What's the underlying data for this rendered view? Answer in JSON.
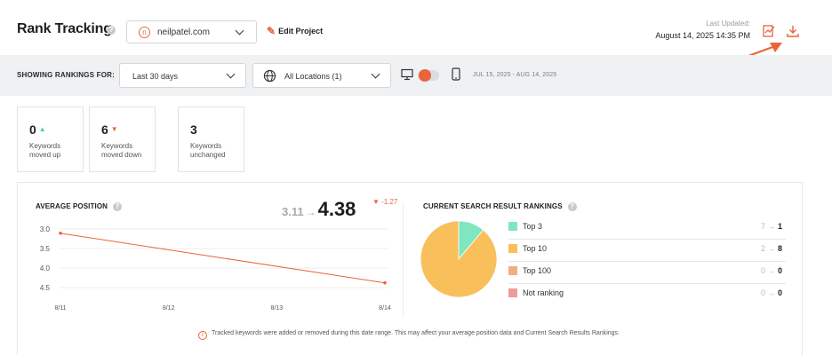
{
  "header": {
    "title": "Rank Tracking",
    "help_glyph": "?",
    "project": {
      "logo_letter": "n",
      "value": "neilpatel.com"
    },
    "edit_label": "Edit Project",
    "last_updated_label": "Last Updated:",
    "last_updated_value": "August 14, 2025 14:35 PM",
    "icons": [
      "report-icon",
      "download-icon"
    ],
    "accent_color": "#e9643b"
  },
  "filters": {
    "label": "SHOWING RANKINGS FOR:",
    "date_range": "Last 30 days",
    "locations": "All Locations (1)",
    "device_toggle": "desktop",
    "range_text": "JUL 15, 2025 - AUG 14, 2025"
  },
  "stats": [
    {
      "value": "0",
      "trend": "▲",
      "trend_color": "#4fcf9b",
      "label": "Keywords moved up"
    },
    {
      "value": "6",
      "trend": "▼",
      "trend_color": "#e9643b",
      "label": "Keywords moved down"
    },
    {
      "value": "3",
      "trend": "",
      "trend_color": "",
      "label": "Keywords unchanged"
    }
  ],
  "average_position": {
    "title": "AVERAGE POSITION",
    "from": "3.11",
    "arrow": "→",
    "to": "4.38",
    "delta": "▼ -1.27"
  },
  "chart_data": [
    {
      "type": "line",
      "title": "AVERAGE POSITION",
      "categories": [
        "8/11",
        "8/12",
        "8/13",
        "8/14"
      ],
      "series": [
        {
          "values": [
            3.11,
            null,
            null,
            4.38
          ]
        }
      ],
      "y_ticks": [
        "3.0",
        "3.5",
        "4.0",
        "4.5"
      ],
      "ylim": [
        3.0,
        4.5
      ],
      "y_inverted": true,
      "grid": true,
      "color": "#e9643b"
    },
    {
      "type": "pie",
      "title": "CURRENT SEARCH RESULT RANKINGS",
      "categories": [
        "Top 3",
        "Top 10",
        "Top 100",
        "Not ranking"
      ],
      "values": [
        1,
        8,
        0,
        0
      ],
      "colors": [
        "#7ee7bf",
        "#f9bf5b",
        "#f4ab86",
        "#ef9a9a"
      ]
    }
  ],
  "rankings": {
    "title": "CURRENT SEARCH RESULT RANKINGS",
    "rows": [
      {
        "name": "Top 3",
        "color": "#7ee7bf",
        "from": "7",
        "to": "1"
      },
      {
        "name": "Top 10",
        "color": "#f9bf5b",
        "from": "2",
        "to": "8"
      },
      {
        "name": "Top 100",
        "color": "#f4ab86",
        "from": "0",
        "to": "0"
      },
      {
        "name": "Not ranking",
        "color": "#ef9a9a",
        "from": "0",
        "to": "0"
      }
    ]
  },
  "notice": {
    "glyph": "i",
    "text": "Tracked keywords were added or removed during this date range. This may affect your average position data and Current Search Results Rankings."
  }
}
